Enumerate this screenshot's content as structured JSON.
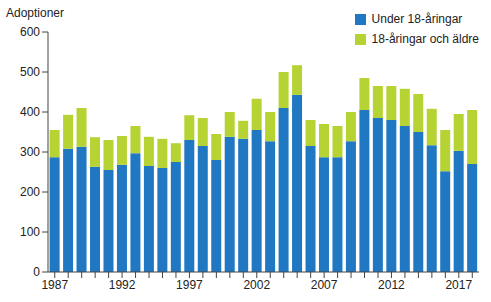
{
  "chart_data": {
    "type": "bar",
    "y_label": "Adoptioner",
    "categories": [
      1987,
      null,
      null,
      null,
      null,
      1992,
      null,
      null,
      null,
      null,
      1997,
      null,
      null,
      null,
      null,
      2002,
      null,
      null,
      null,
      null,
      2007,
      null,
      null,
      null,
      null,
      2012,
      null,
      null,
      null,
      null,
      2017,
      null
    ],
    "series": [
      {
        "name": "Under 18-åringar",
        "color": "#1f78c1",
        "values": [
          287,
          308,
          313,
          263,
          255,
          268,
          297,
          265,
          260,
          275,
          330,
          315,
          280,
          338,
          333,
          355,
          327,
          410,
          443,
          315,
          287,
          287,
          327,
          405,
          385,
          380,
          365,
          350,
          317,
          252,
          303,
          270
        ]
      },
      {
        "name": "18-åringar och äldre",
        "color": "#b6d334",
        "values": [
          68,
          85,
          97,
          74,
          75,
          72,
          68,
          73,
          73,
          47,
          62,
          70,
          65,
          62,
          45,
          78,
          73,
          90,
          74,
          65,
          83,
          78,
          73,
          80,
          80,
          85,
          93,
          95,
          91,
          103,
          92,
          135
        ]
      }
    ],
    "ylim": [
      0,
      600
    ],
    "yticks": [
      0,
      100,
      200,
      300,
      400,
      500,
      600
    ],
    "stacked": true,
    "grid": false,
    "legend": "upper right"
  }
}
